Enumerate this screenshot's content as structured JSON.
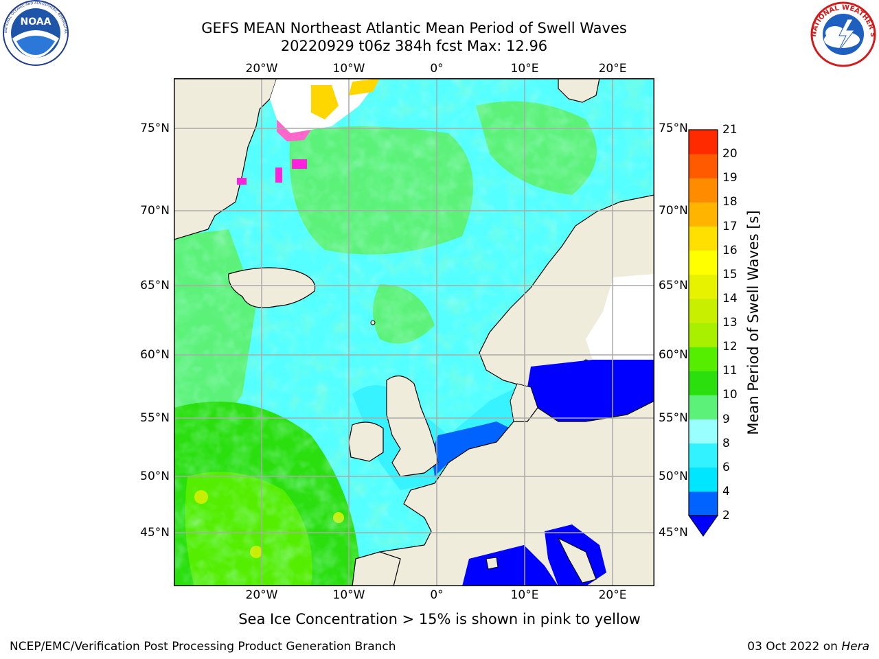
{
  "title": "GEFS MEAN Northeast Atlantic Mean Period of Swell Waves",
  "subtitle_line": "20220929 t06z 384h fcst   Max: 12.96",
  "logos": {
    "noaa_text": "NOAA",
    "noaa_ring": "NATIONAL OCEANIC AND ATMOSPHERIC ADMINISTRATION • U.S. DEPARTMENT OF COMMERCE",
    "nws_ring": "NATIONAL WEATHER SERVICE"
  },
  "map": {
    "lon_ticks": [
      "20°W",
      "10°W",
      "0°",
      "10°E",
      "20°E"
    ],
    "lat_ticks": [
      "75°N",
      "70°N",
      "65°N",
      "60°N",
      "55°N",
      "50°N",
      "45°N"
    ],
    "land_color": "#efecdc",
    "ice_label": "Sea Ice Concentration > 15% is shown in pink to yellow"
  },
  "colorbar": {
    "title": "Mean Period of Swell Waves [s]",
    "labels": [
      "2",
      "4",
      "6",
      "8",
      "9",
      "10",
      "11",
      "12",
      "13",
      "14",
      "15",
      "16",
      "17",
      "18",
      "19",
      "20",
      "21"
    ],
    "colors": [
      "#0062ff",
      "#00e6ff",
      "#33f2ff",
      "#99ffff",
      "#5cf27a",
      "#2bdf0f",
      "#55ee00",
      "#a8f000",
      "#c8ee00",
      "#e6f200",
      "#ffff00",
      "#ffe000",
      "#ffb400",
      "#ff8c00",
      "#ff5a00",
      "#ff2a00",
      "#ff0000"
    ],
    "extend_color": "#0000ff"
  },
  "footer": {
    "left": "NCEP/EMC/Verification Post Processing Product Generation Branch",
    "right_date": "03 Oct 2022 on ",
    "right_host": "Hera"
  }
}
